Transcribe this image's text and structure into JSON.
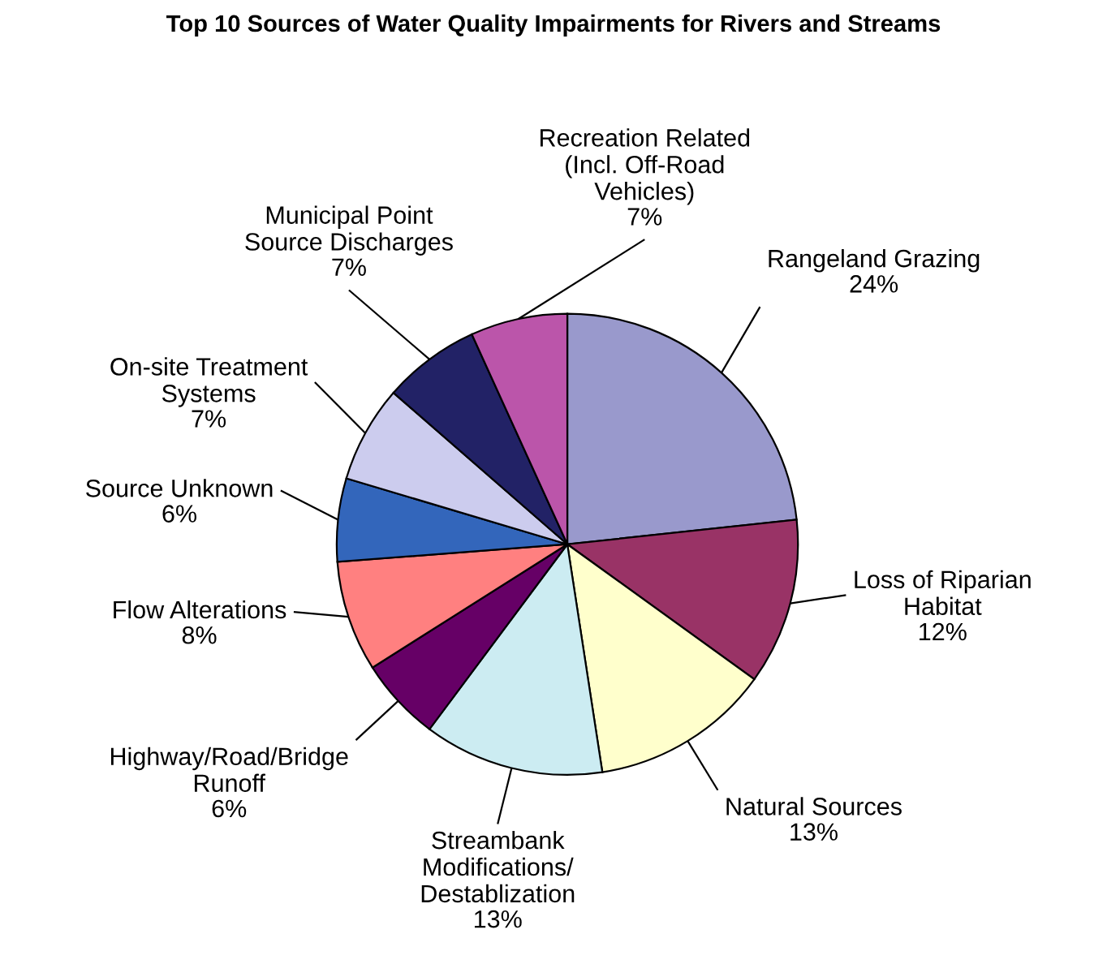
{
  "chart_data": {
    "type": "pie",
    "title": "Top 10 Sources of Water Quality Impairments for Rivers and Streams",
    "categories": [
      "Rangeland Grazing",
      "Loss of Riparian\nHabitat",
      "Natural Sources",
      "Streambank\nModifications/\nDestablization",
      "Highway/Road/Bridge\nRunoff",
      "Flow Alterations",
      "Source Unknown",
      "On-site Treatment\nSystems",
      "Municipal Point\nSource Discharges",
      "Recreation Related\n(Incl. Off-Road\nVehicles)"
    ],
    "values": [
      24,
      12,
      13,
      13,
      6,
      8,
      6,
      7,
      7,
      7
    ],
    "colors": [
      "#9999cc",
      "#993366",
      "#ffffcc",
      "#ccecf2",
      "#660066",
      "#ff8080",
      "#3366bb",
      "#ccccee",
      "#222266",
      "#bb55aa"
    ],
    "value_labels": [
      "24%",
      "12%",
      "13%",
      "13%",
      "6%",
      "8%",
      "6%",
      "7%",
      "7%",
      "7%"
    ],
    "legend": false
  }
}
